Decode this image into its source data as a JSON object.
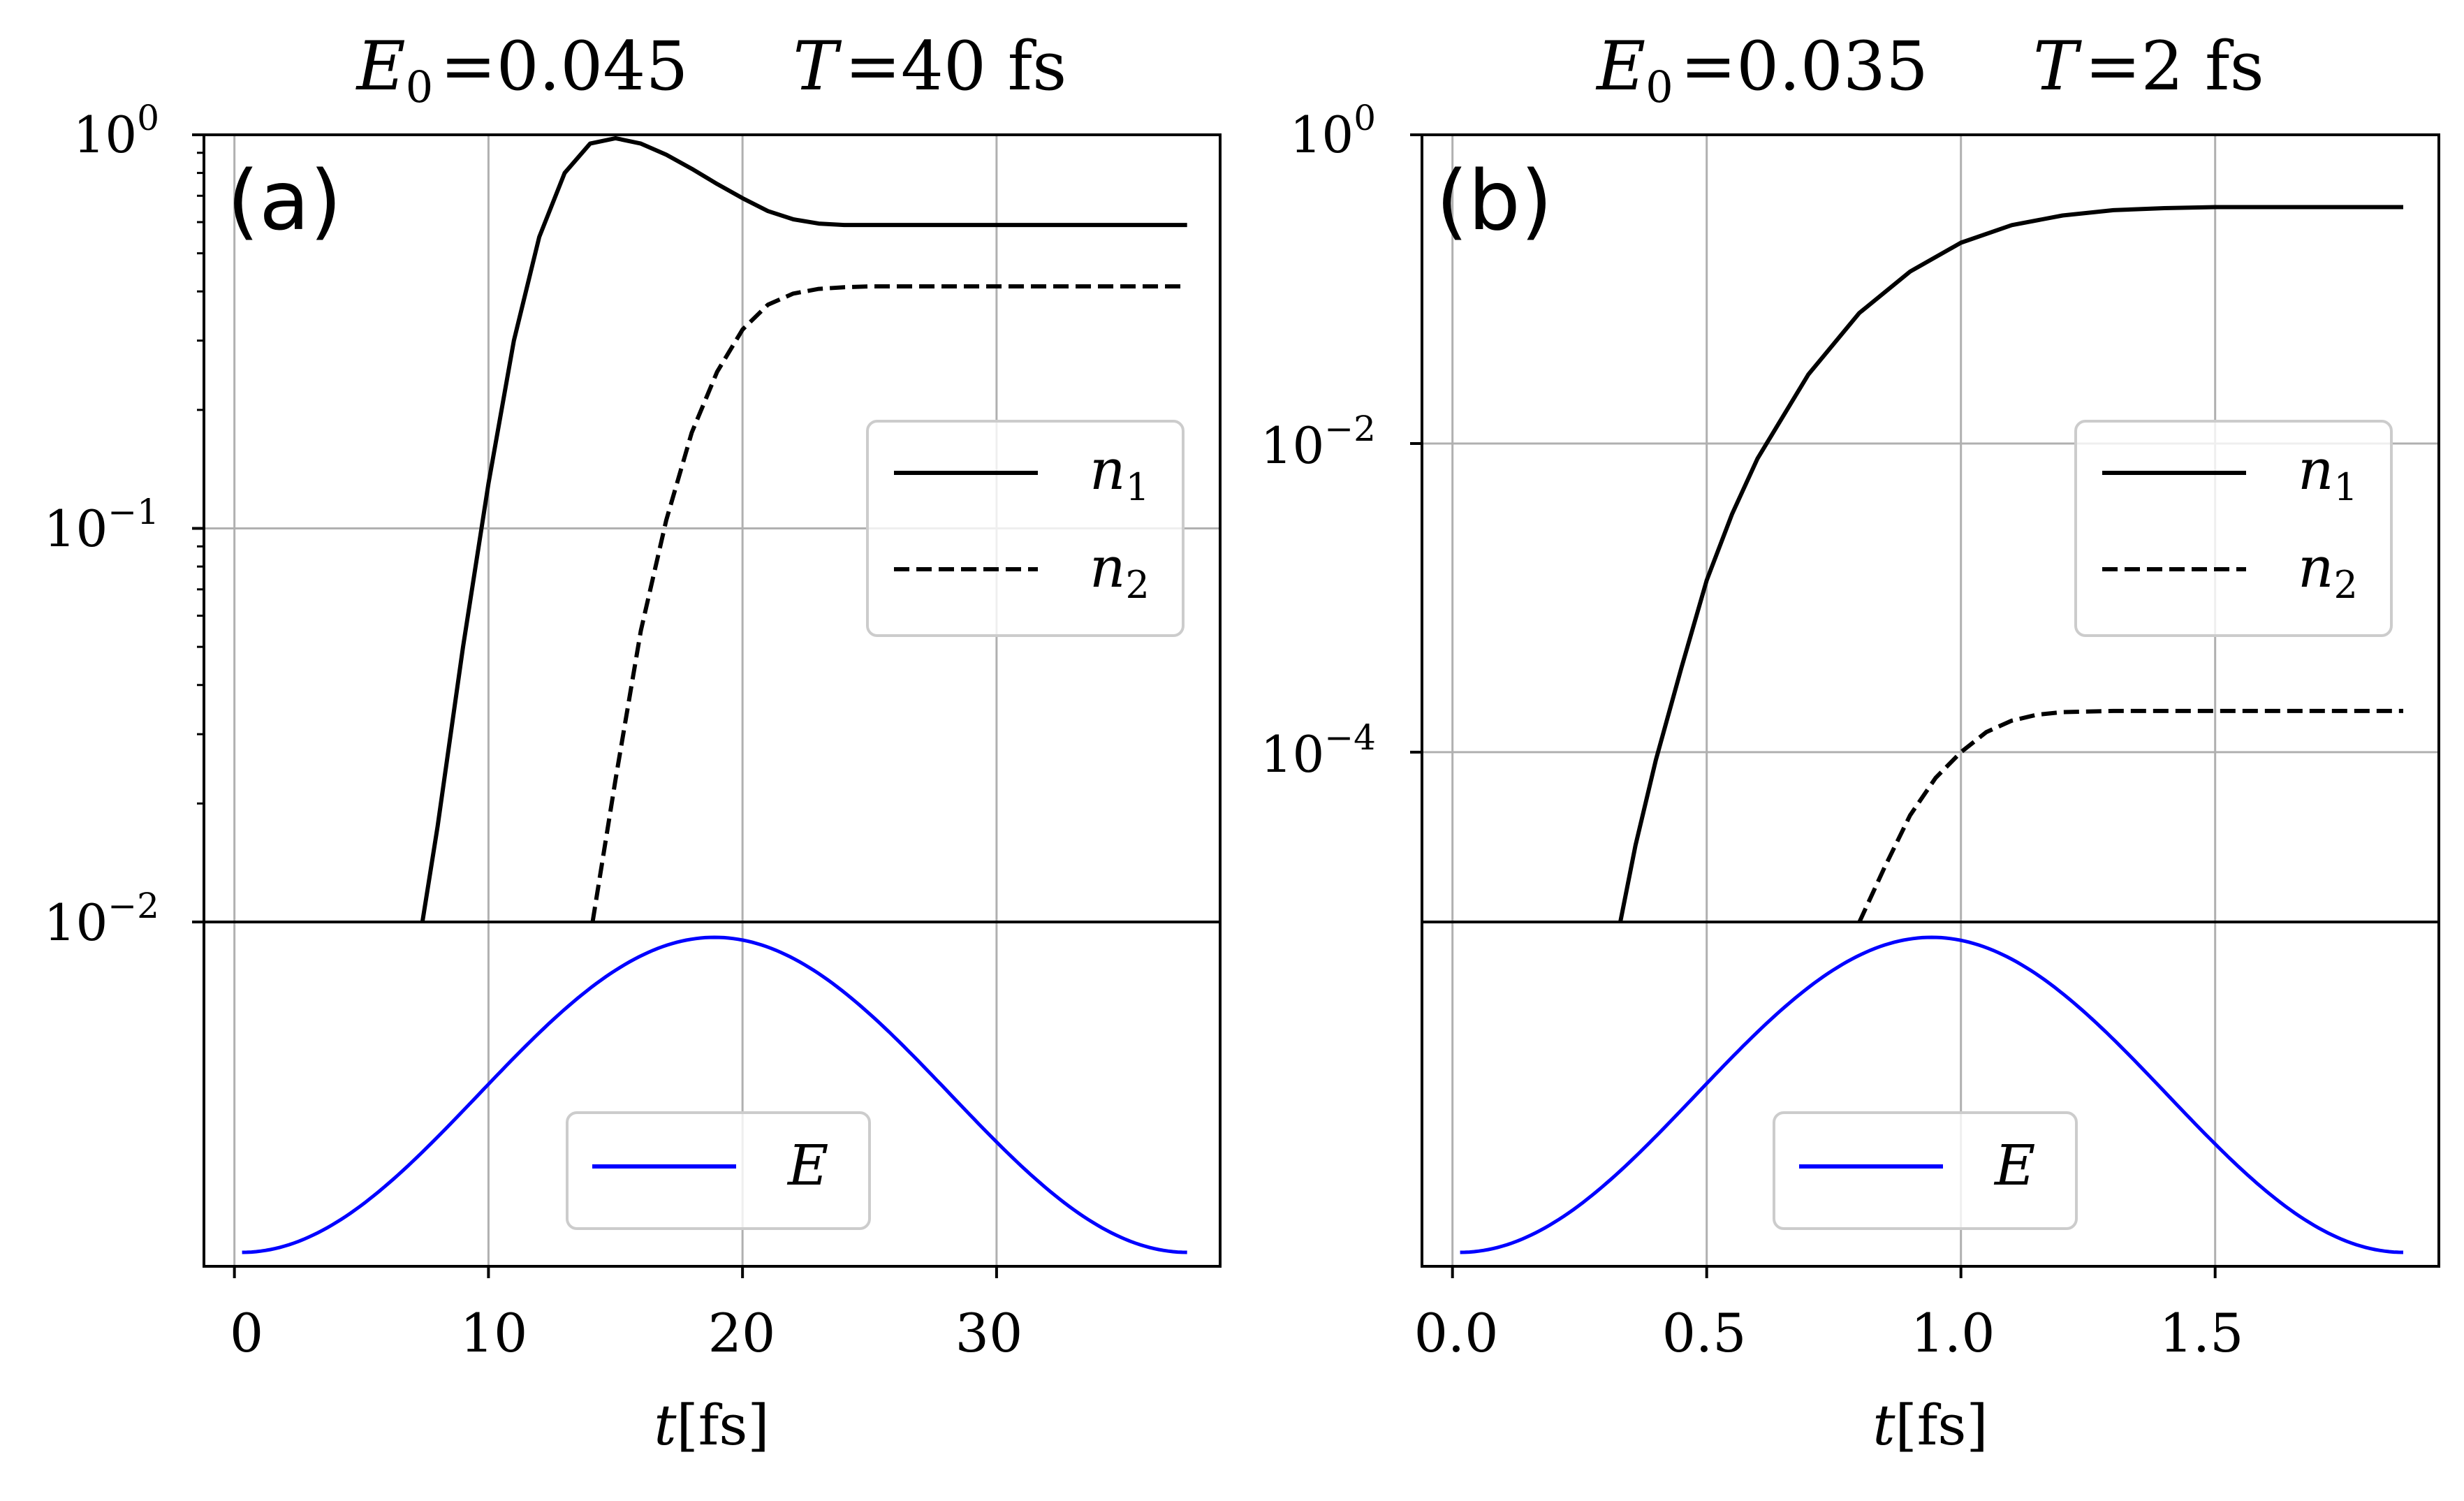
{
  "figure": {
    "xlabel_var": "t",
    "xlabel_unit": "[fs]"
  },
  "chart_data": [
    {
      "type": "line",
      "panel_label": "(a)",
      "title": {
        "field_symbol": "E",
        "field_sub": "0",
        "field_value": "=0.045",
        "period_symbol": "T",
        "period_value": "=40 fs"
      },
      "xlabel": "t[fs]",
      "xlim": [
        -1.2,
        38.8
      ],
      "xticks": [
        0,
        10,
        20,
        30
      ],
      "xtick_labels": [
        "0",
        "10",
        "20",
        "30"
      ],
      "upper": {
        "yscale": "log",
        "ylim_log10": [
          -2,
          0
        ],
        "major_ticks_log10": [
          -2,
          -1,
          0
        ],
        "tick_labels": [
          {
            "base": "10",
            "exp": "−2"
          },
          {
            "base": "10",
            "exp": "−1"
          },
          {
            "base": "10",
            "exp": "0"
          }
        ],
        "minor_ticks": true,
        "series": [
          {
            "name": "n",
            "sub": "1",
            "style": "solid",
            "color": "#000000",
            "x": [
              7.4,
              8,
              9,
              10,
              11,
              12,
              13,
              14,
              15,
              16,
              17,
              18,
              19,
              20,
              21,
              22,
              23,
              24,
              25,
              27,
              30,
              33,
              36,
              37.5
            ],
            "y": [
              0.01,
              0.0175,
              0.05,
              0.13,
              0.3,
              0.55,
              0.8,
              0.95,
              0.98,
              0.95,
              0.89,
              0.82,
              0.75,
              0.69,
              0.64,
              0.61,
              0.595,
              0.59,
              0.59,
              0.59,
              0.59,
              0.59,
              0.59,
              0.59
            ]
          },
          {
            "name": "n",
            "sub": "2",
            "style": "dashed",
            "color": "#000000",
            "x": [
              14.1,
              15,
              16,
              17,
              18,
              19,
              20,
              21,
              22,
              23,
              24,
              25,
              27,
              30,
              33,
              36,
              37.5
            ],
            "y": [
              0.01,
              0.023,
              0.055,
              0.105,
              0.175,
              0.25,
              0.32,
              0.37,
              0.395,
              0.406,
              0.41,
              0.412,
              0.412,
              0.412,
              0.412,
              0.412,
              0.412
            ]
          }
        ],
        "legend_loc": "center right"
      },
      "lower": {
        "series": [
          {
            "name": "E",
            "style": "solid",
            "color": "#0000ff",
            "function": "sin^2 pulse",
            "x_range": [
              0.3,
              37.5
            ],
            "peak_x": 18.9,
            "peak_value": 0.045
          }
        ],
        "legend_loc": "lower center"
      }
    },
    {
      "type": "line",
      "panel_label": "(b)",
      "title": {
        "field_symbol": "E",
        "field_sub": "0",
        "field_value": "=0.035",
        "period_symbol": "T",
        "period_value": "=2 fs"
      },
      "xlabel": "t[fs]",
      "xlim": [
        -0.06,
        1.94
      ],
      "xticks": [
        0.0,
        0.5,
        1.0,
        1.5
      ],
      "xtick_labels": [
        "0.0",
        "0.5",
        "1.0",
        "1.5"
      ],
      "upper": {
        "yscale": "log",
        "ylim_log10": [
          -5.1,
          0
        ],
        "major_ticks_log10": [
          -4,
          -2,
          0
        ],
        "tick_labels": [
          {
            "base": "10",
            "exp": "−4"
          },
          {
            "base": "10",
            "exp": "−2"
          },
          {
            "base": "10",
            "exp": "0"
          }
        ],
        "minor_ticks": false,
        "series": [
          {
            "name": "n",
            "sub": "1",
            "style": "solid",
            "color": "#000000",
            "x": [
              0.33,
              0.36,
              0.4,
              0.45,
              0.5,
              0.55,
              0.6,
              0.7,
              0.8,
              0.9,
              1.0,
              1.1,
              1.2,
              1.3,
              1.4,
              1.5,
              1.6,
              1.7,
              1.87
            ],
            "y": [
              7.9e-06,
              2.5e-05,
              8.9e-05,
              0.00035,
              0.0013,
              0.0035,
              0.008,
              0.028,
              0.07,
              0.13,
              0.2,
              0.26,
              0.3,
              0.325,
              0.335,
              0.34,
              0.34,
              0.34,
              0.34
            ]
          },
          {
            "name": "n",
            "sub": "2",
            "style": "dashed",
            "color": "#000000",
            "x": [
              0.8,
              0.85,
              0.9,
              0.95,
              1.0,
              1.05,
              1.1,
              1.15,
              1.2,
              1.3,
              1.5,
              1.7,
              1.87
            ],
            "y": [
              7.9e-06,
              1.8e-05,
              3.9e-05,
              6.8e-05,
              0.0001,
              0.000135,
              0.00016,
              0.000175,
              0.000182,
              0.000185,
              0.000185,
              0.000185,
              0.000185
            ]
          }
        ],
        "legend_loc": "center right"
      },
      "lower": {
        "series": [
          {
            "name": "E",
            "style": "solid",
            "color": "#0000ff",
            "function": "sin^2 pulse",
            "x_range": [
              0.015,
              1.87
            ],
            "peak_x": 0.943,
            "peak_value": 0.035
          }
        ],
        "legend_loc": "lower center"
      }
    }
  ]
}
